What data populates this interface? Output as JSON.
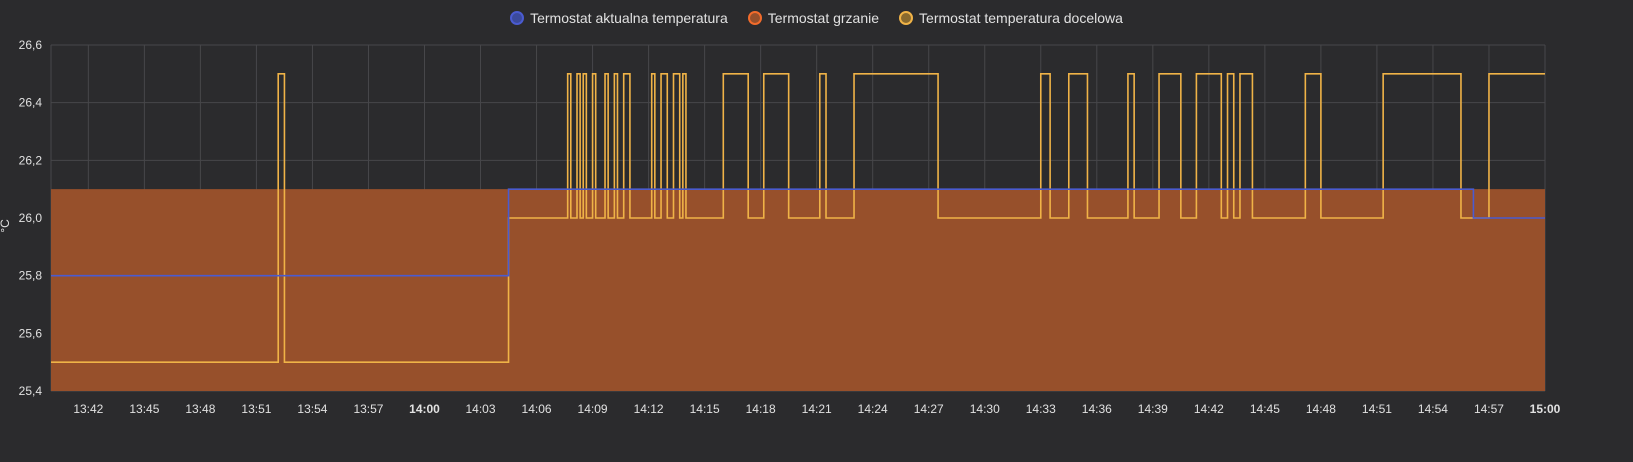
{
  "chart_data": {
    "type": "line",
    "ylabel": "°C",
    "ylim": [
      25.4,
      26.6
    ],
    "yticks": [
      "25,4",
      "25,6",
      "25,8",
      "26,0",
      "26,2",
      "26,4",
      "26,6"
    ],
    "ytick_values": [
      25.4,
      25.6,
      25.8,
      26.0,
      26.2,
      26.4,
      26.6
    ],
    "xlim": [
      "13:40",
      "15:00"
    ],
    "xticks": [
      "13:42",
      "13:45",
      "13:48",
      "13:51",
      "13:54",
      "13:57",
      "14:00",
      "14:03",
      "14:06",
      "14:09",
      "14:12",
      "14:15",
      "14:18",
      "14:21",
      "14:24",
      "14:27",
      "14:30",
      "14:33",
      "14:36",
      "14:39",
      "14:42",
      "14:45",
      "14:48",
      "14:51",
      "14:54",
      "14:57",
      "15:00"
    ],
    "bold_ticks": [
      "14:00",
      "15:00"
    ],
    "grid": true,
    "legend_position": "top-center",
    "series": [
      {
        "name": "Termostat aktualna temperatura",
        "color": "#4a5bd0",
        "step": true,
        "x": [
          "13:40",
          "14:04:30",
          "14:56:10",
          "15:00"
        ],
        "y": [
          25.8,
          26.1,
          26.0,
          26.0
        ]
      },
      {
        "name": "Termostat grzanie",
        "color": "#f26b2b",
        "fill_color": "#97502b",
        "step": true,
        "x": [
          "13:40",
          "14:04:30",
          "14:56:10",
          "15:00"
        ],
        "y": [
          26.1,
          26.1,
          26.1,
          26.1
        ]
      },
      {
        "name": "Termostat temperatura docelowa",
        "color": "#f0b347",
        "step": true,
        "x": [
          "13:40",
          "13:52:10",
          "13:52:30",
          "14:04:30",
          "14:07:40",
          "14:07:50",
          "14:08:10",
          "14:08:20",
          "14:08:30",
          "14:08:40",
          "14:09:00",
          "14:09:10",
          "14:09:40",
          "14:09:50",
          "14:10:10",
          "14:10:20",
          "14:10:40",
          "14:11:00",
          "14:12:10",
          "14:12:20",
          "14:12:40",
          "14:13:00",
          "14:13:20",
          "14:13:40",
          "14:13:50",
          "14:14:00",
          "14:16:00",
          "14:17:20",
          "14:18:10",
          "14:19:30",
          "14:21:10",
          "14:21:30",
          "14:23:00",
          "14:27:30",
          "14:33:00",
          "14:33:30",
          "14:34:30",
          "14:35:30",
          "14:37:40",
          "14:38:00",
          "14:39:20",
          "14:40:30",
          "14:41:20",
          "14:42:40",
          "14:43:00",
          "14:43:20",
          "14:43:40",
          "14:44:20",
          "14:47:10",
          "14:48:00",
          "14:51:20",
          "14:55:30",
          "14:56:10",
          "14:57:00",
          "15:00"
        ],
        "y": [
          25.5,
          26.5,
          25.5,
          26.0,
          26.5,
          26.0,
          26.5,
          26.0,
          26.5,
          26.0,
          26.5,
          26.0,
          26.5,
          26.0,
          26.5,
          26.0,
          26.5,
          26.0,
          26.5,
          26.0,
          26.5,
          26.0,
          26.5,
          26.0,
          26.5,
          26.0,
          26.5,
          26.0,
          26.5,
          26.0,
          26.5,
          26.0,
          26.5,
          26.0,
          26.5,
          26.0,
          26.5,
          26.0,
          26.5,
          26.0,
          26.5,
          26.0,
          26.5,
          26.0,
          26.5,
          26.0,
          26.5,
          26.0,
          26.5,
          26.0,
          26.5,
          26.0,
          26.0,
          26.5,
          26.5
        ]
      }
    ]
  }
}
